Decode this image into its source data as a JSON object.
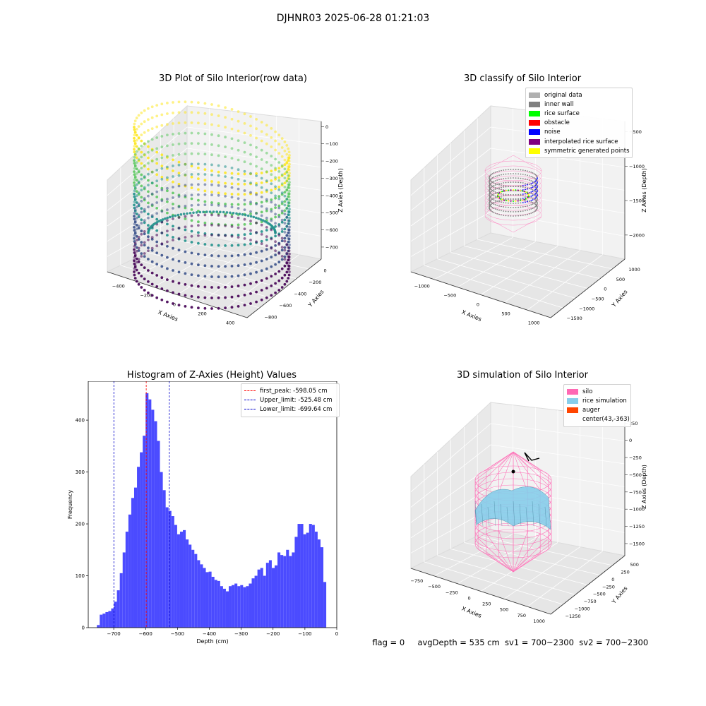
{
  "figure_title": "DJHNR03 2025-06-28 01:21:03",
  "footer": {
    "flag": "flag = 0",
    "avg_depth": "avgDepth = 535 cm",
    "sv1": "sv1 = 700~2300",
    "sv2": "sv2 = 700~2300"
  },
  "chart_data": [
    {
      "type": "scatter",
      "title": "3D Plot of Silo Interior(row data)",
      "xlabel": "X Axies",
      "ylabel": "Y Axies",
      "zlabel": "Z Axies (Depth)",
      "x_ticks": [
        "−400",
        "−200",
        "0",
        "200",
        "400"
      ],
      "y_ticks": [
        "−800",
        "−600",
        "−400",
        "−200",
        "0"
      ],
      "z_ticks": [
        "0",
        "−100",
        "−200",
        "−300",
        "−400",
        "−500",
        "−600",
        "−700"
      ],
      "xlim": [
        -450,
        450
      ],
      "ylim": [
        -850,
        50
      ],
      "zlim": [
        -780,
        0
      ],
      "colormap": [
        "#440154",
        "#3b528b",
        "#21918c",
        "#5ec962",
        "#fde725"
      ]
    },
    {
      "type": "scatter",
      "title": "3D classify of Silo Interior",
      "x_ticks": [
        "−1000",
        "−500",
        "0",
        "500",
        "1000"
      ],
      "y_ticks": [
        "−1500",
        "−1000",
        "−500",
        "0",
        "500",
        "1000"
      ],
      "z_ticks": [
        "−500",
        "−1000",
        "−1500",
        "−2000"
      ],
      "xlabel": "X Axies",
      "ylabel": "Y Axies",
      "zlabel": "Z Axies (Depth)",
      "legend": [
        {
          "label": "original data",
          "color": "#b0b0b0"
        },
        {
          "label": "inner wall",
          "color": "#808080"
        },
        {
          "label": "rice surface",
          "color": "#00ff00"
        },
        {
          "label": "obstacle",
          "color": "#ff0000"
        },
        {
          "label": "noise",
          "color": "#0000ff"
        },
        {
          "label": "interpolated rice surface",
          "color": "#800080"
        },
        {
          "label": "symmetric generated points",
          "color": "#ffff00"
        }
      ]
    },
    {
      "type": "bar",
      "title": "Histogram of Z-Axies (Height) Values",
      "xlabel": "Depth (cm)",
      "ylabel": "Frequency",
      "xlim": [
        -780,
        0
      ],
      "ylim": [
        0,
        475
      ],
      "x_ticks": [
        -700,
        -600,
        -500,
        -400,
        -300,
        -200,
        -100,
        0
      ],
      "y_ticks": [
        0,
        100,
        200,
        300,
        400
      ],
      "bar_color": "#0000ff",
      "bin_edges": [
        -753,
        -744,
        -735,
        -726,
        -717,
        -708,
        -699,
        -690,
        -681,
        -672,
        -663,
        -654,
        -645,
        -636,
        -627,
        -618,
        -609,
        -600,
        -591,
        -582,
        -573,
        -564,
        -555,
        -546,
        -537,
        -528,
        -519,
        -510,
        -501,
        -492,
        -483,
        -474,
        -465,
        -456,
        -447,
        -438,
        -429,
        -420,
        -411,
        -402,
        -393,
        -384,
        -375,
        -366,
        -357,
        -348,
        -339,
        -330,
        -321,
        -312,
        -303,
        -294,
        -285,
        -276,
        -267,
        -258,
        -249,
        -240,
        -231,
        -222,
        -213,
        -204,
        -195,
        -186,
        -177,
        -168,
        -159,
        -150,
        -141,
        -132,
        -123,
        -114,
        -105,
        -96,
        -87,
        -78,
        -69,
        -60,
        -51,
        -42,
        -33
      ],
      "values": [
        5,
        25,
        27,
        30,
        32,
        37,
        50,
        72,
        105,
        145,
        185,
        218,
        250,
        270,
        310,
        338,
        370,
        452,
        440,
        420,
        398,
        360,
        300,
        265,
        232,
        225,
        215,
        198,
        180,
        185,
        188,
        170,
        160,
        150,
        142,
        130,
        122,
        115,
        107,
        108,
        98,
        92,
        90,
        80,
        75,
        70,
        80,
        82,
        85,
        80,
        82,
        78,
        80,
        85,
        95,
        100,
        112,
        115,
        100,
        125,
        130,
        115,
        120,
        145,
        140,
        138,
        150,
        138,
        145,
        175,
        200,
        200,
        180,
        183,
        200,
        198,
        185,
        170,
        155,
        88
      ],
      "vlines": [
        {
          "x": -598.05,
          "label": "first_peak: -598.05 cm",
          "color": "#ff0000"
        },
        {
          "x": -525.48,
          "label": "Upper_limit: -525.48 cm",
          "color": "#0000cc"
        },
        {
          "x": -699.64,
          "label": "Lower_limit: -699.64 cm",
          "color": "#0000cc"
        }
      ]
    },
    {
      "type": "scatter",
      "title": "3D simulation of Silo Interior",
      "xlabel": "X Axies",
      "ylabel": "Y Axies",
      "zlabel": "Z Axies (Depth)",
      "x_ticks": [
        "−750",
        "−500",
        "−250",
        "0",
        "250",
        "500",
        "750",
        "1000"
      ],
      "y_ticks": [
        "−1250",
        "−1000",
        "−750",
        "−500",
        "−250",
        "0",
        "250",
        "500"
      ],
      "z_ticks": [
        "250",
        "0",
        "−250",
        "−500",
        "−750",
        "−1000",
        "−1250",
        "−1500"
      ],
      "legend": [
        {
          "label": "silo",
          "color": "#ff69b4"
        },
        {
          "label": "rice simulation",
          "color": "#87ceeb"
        },
        {
          "label": "auger",
          "color": "#ff4500"
        },
        {
          "label": "center(43,-363)",
          "color": ""
        }
      ]
    }
  ]
}
